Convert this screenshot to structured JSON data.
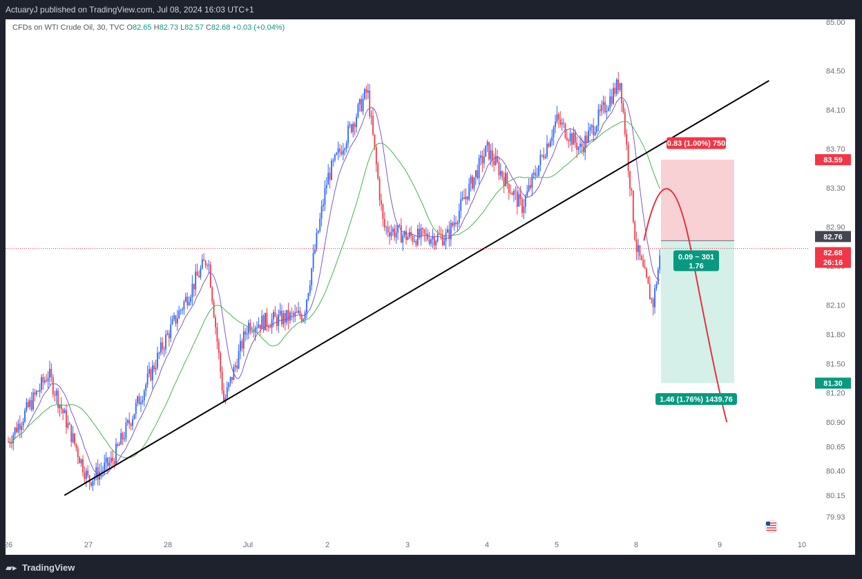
{
  "header": {
    "publish_line": "ActuaryJ published on TradingView.com, Jul 08, 2024 16:03 UTC+1"
  },
  "legend": {
    "symbol": "CFDs on WTI Crude Oil, 30, TVC",
    "o_label": "O",
    "o_value": "82.65",
    "h_label": "H",
    "h_value": "82.73",
    "l_label": "L",
    "l_value": "82.57",
    "c_label": "C",
    "c_value": "82.68",
    "change": "+0.03 (+0.04%)"
  },
  "footer": {
    "logo_text": "TradingView"
  },
  "colors": {
    "up": "#2962ff",
    "down": "#f23645",
    "ma_fast": "#7e57c2",
    "ma_slow": "#4caf50",
    "trendline": "#000000",
    "stop_zone": "#f7c9cd",
    "target_zone": "#cfeee6",
    "forecast_curve": "#e0323f",
    "last_price_line": "#e0323f"
  },
  "position_labels": {
    "risk": "0.83 (1.00%) 750",
    "mid": "0.09 ~ 301",
    "mid_ratio": "1.76",
    "reward": "1.46 (1.76%) 1439.76"
  },
  "price_tags": {
    "stop": "83.59",
    "entry": "82.76",
    "last": "82.68",
    "countdown": "26:16",
    "target": "81.30"
  },
  "chart_data": {
    "type": "candlestick",
    "title": "",
    "symbol": "CFDs on WTI Crude Oil, 30, TVC",
    "y_ticks": [
      "85.00",
      "84.50",
      "84.10",
      "83.70",
      "83.30",
      "82.90",
      "82.50",
      "82.10",
      "81.80",
      "81.50",
      "81.20",
      "80.90",
      "80.65",
      "80.40",
      "80.15",
      "79.93"
    ],
    "x_ticks": [
      "26",
      "27",
      "28",
      "Jul",
      "2",
      "3",
      "4",
      "5",
      "8",
      "9",
      "10"
    ],
    "ylim": [
      79.8,
      85.05
    ],
    "series": [
      {
        "name": "",
        "type": "moving-average",
        "color": "#7e57c2"
      },
      {
        "name": "",
        "type": "moving-average",
        "color": "#4caf50"
      }
    ],
    "approx_path": [
      {
        "x": "26",
        "close": 80.7
      },
      {
        "x": "26.5",
        "close": 81.4
      },
      {
        "x": "27",
        "close": 80.3
      },
      {
        "x": "27.3",
        "close": 80.5
      },
      {
        "x": "28",
        "close": 81.8
      },
      {
        "x": "28.5",
        "close": 82.6
      },
      {
        "x": "28.7",
        "close": 81.1
      },
      {
        "x": "Jul",
        "close": 81.9
      },
      {
        "x": "Jul.7",
        "close": 82.0
      },
      {
        "x": "2",
        "close": 83.4
      },
      {
        "x": "2.5",
        "close": 84.3
      },
      {
        "x": "2.7",
        "close": 82.9
      },
      {
        "x": "3",
        "close": 82.8
      },
      {
        "x": "3.5",
        "close": 82.8
      },
      {
        "x": "4",
        "close": 83.7
      },
      {
        "x": "4.5",
        "close": 83.1
      },
      {
        "x": "5",
        "close": 84.0
      },
      {
        "x": "5.3",
        "close": 83.7
      },
      {
        "x": "5.8",
        "close": 84.4
      },
      {
        "x": "8",
        "close": 82.7
      },
      {
        "x": "8.2",
        "close": 82.1
      },
      {
        "x": "8.3",
        "close": 82.68
      }
    ],
    "annotations": {
      "trendline_start": {
        "x": "26.7",
        "y": 80.15
      },
      "trendline_end": {
        "x": "9.6",
        "y": 84.4
      },
      "position": {
        "entry": 82.76,
        "stop": 83.59,
        "target": 81.3,
        "last": 82.68
      }
    }
  }
}
